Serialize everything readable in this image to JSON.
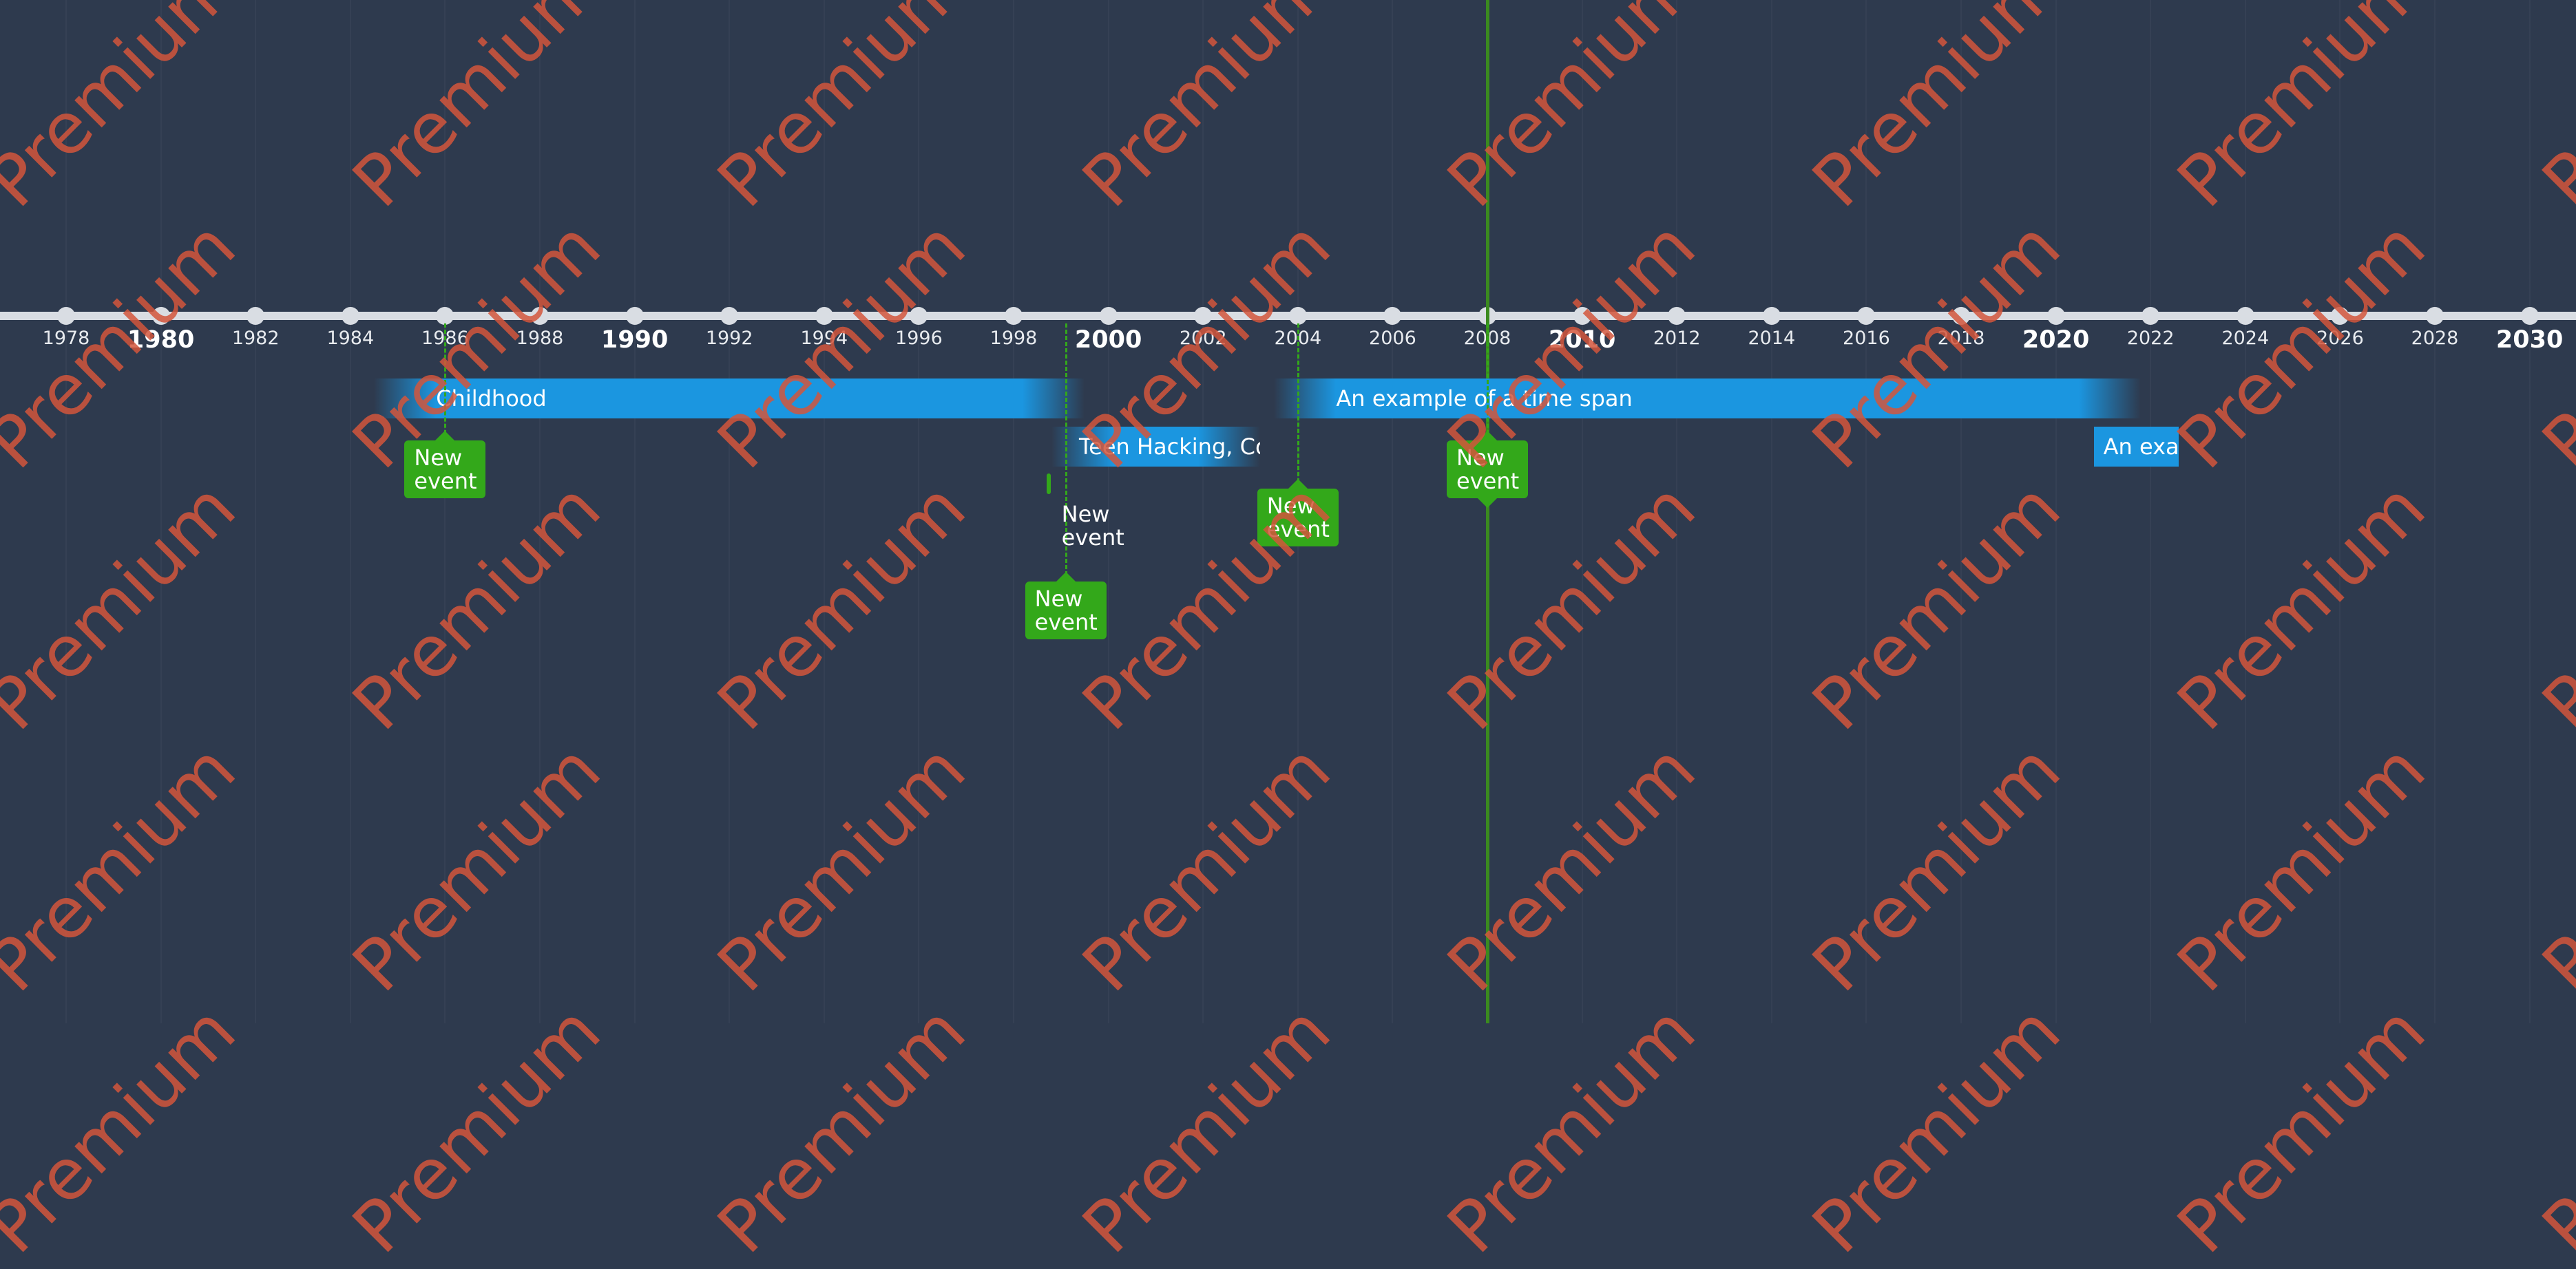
{
  "timeline": {
    "colors": {
      "background": "#2e3a4e",
      "axis": "#d9dde3",
      "span": "#1b96e0",
      "event": "#33a81a",
      "watermark": "#d2563c"
    },
    "watermark_text": "Premium",
    "axis_ticks": [
      {
        "label": "1978",
        "major": false
      },
      {
        "label": "1980",
        "major": true
      },
      {
        "label": "1982",
        "major": false
      },
      {
        "label": "1984",
        "major": false
      },
      {
        "label": "1986",
        "major": false
      },
      {
        "label": "1988",
        "major": false
      },
      {
        "label": "1990",
        "major": true
      },
      {
        "label": "1992",
        "major": false
      },
      {
        "label": "1994",
        "major": false
      },
      {
        "label": "1996",
        "major": false
      },
      {
        "label": "1998",
        "major": false
      },
      {
        "label": "2000",
        "major": true
      },
      {
        "label": "2002",
        "major": false
      },
      {
        "label": "2004",
        "major": false
      },
      {
        "label": "2006",
        "major": false
      },
      {
        "label": "2008",
        "major": false
      },
      {
        "label": "2010",
        "major": true
      },
      {
        "label": "2012",
        "major": false
      },
      {
        "label": "2014",
        "major": false
      },
      {
        "label": "2016",
        "major": false
      },
      {
        "label": "2018",
        "major": false
      },
      {
        "label": "2020",
        "major": true
      },
      {
        "label": "2022",
        "major": false
      },
      {
        "label": "2024",
        "major": false
      },
      {
        "label": "2026",
        "major": false
      },
      {
        "label": "2028",
        "major": false
      },
      {
        "label": "2030",
        "major": true
      }
    ],
    "spans": [
      {
        "label": "Childhood",
        "start": 1984.5,
        "end": 1999.5
      },
      {
        "label": "Teen Hacking, Contr",
        "start": 1998.8,
        "end": 2003.2
      },
      {
        "label": "An example of a time span",
        "start": 2003.5,
        "end": 2021.8
      },
      {
        "label": "An exar",
        "start": 2020.8,
        "end": 2022.6
      }
    ],
    "events": [
      {
        "label": "New event",
        "year": 1986
      },
      {
        "label": "New event",
        "year": 1999.1
      },
      {
        "label": "New event",
        "year": 2004
      },
      {
        "label": "New event",
        "year": 2008
      }
    ],
    "plain_events": [
      {
        "label": "New event",
        "year": 1999.1
      }
    ],
    "current_marker_year": 2008
  }
}
